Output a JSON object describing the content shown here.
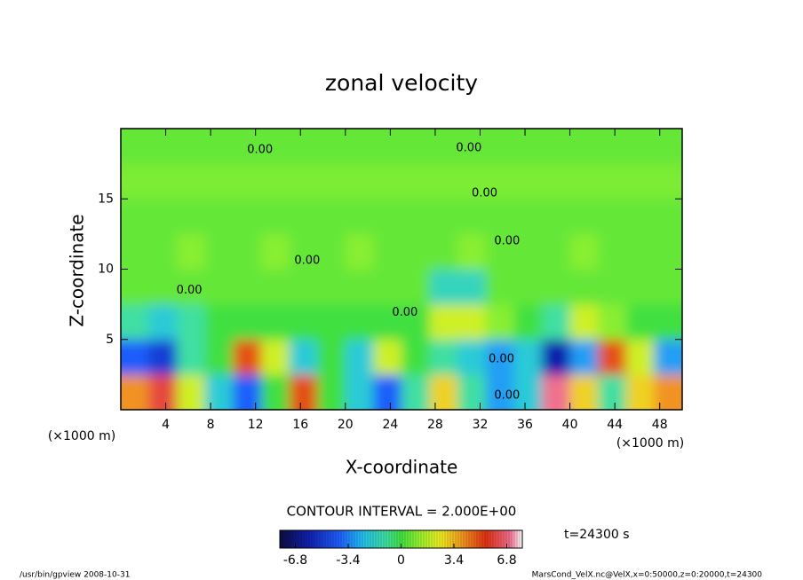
{
  "chart_data": {
    "type": "heatmap",
    "title": "zonal velocity",
    "x_label": "X-coordinate",
    "y_label": "Z-coordinate",
    "x_unit_label": "(×1000 m)",
    "xlim": [
      0,
      50
    ],
    "xticks": [
      4,
      8,
      12,
      16,
      20,
      24,
      28,
      32,
      36,
      40,
      44,
      48
    ],
    "ylim": [
      0,
      20
    ],
    "yticks": [
      5,
      10,
      15
    ],
    "x": [
      1.25,
      3.75,
      6.25,
      8.75,
      11.25,
      13.75,
      16.25,
      18.75,
      21.25,
      23.75,
      26.25,
      28.75,
      31.25,
      33.75,
      36.25,
      38.75,
      41.25,
      43.75,
      46.25,
      48.75
    ],
    "y": [
      1.25,
      3.75,
      6.25,
      8.75,
      11.25,
      13.75,
      16.25,
      18.75
    ],
    "z": [
      [
        4,
        6,
        2,
        -2,
        -4,
        0,
        5,
        0,
        -2,
        -4,
        -1,
        3,
        -1,
        -3,
        -2,
        7,
        3,
        -1,
        3,
        4
      ],
      [
        -4,
        -5,
        -1,
        0,
        5,
        2,
        -2,
        0,
        -2,
        2,
        0,
        -1,
        -2,
        -3,
        -2,
        -6,
        -3,
        5,
        2,
        -3
      ],
      [
        -1,
        -2,
        -1,
        0,
        0,
        0,
        0,
        0,
        0,
        0,
        0,
        2,
        2,
        1,
        0,
        -1,
        2,
        1,
        0,
        0
      ],
      [
        0.5,
        0.5,
        0.5,
        0.5,
        0.5,
        0.5,
        0.5,
        0.5,
        0.5,
        0.5,
        0.5,
        -1.5,
        -1.5,
        0.5,
        0.5,
        0.5,
        0.5,
        0.5,
        0.5,
        0.5
      ],
      [
        0.5,
        0.5,
        1,
        0.5,
        0.5,
        1,
        0.5,
        0.5,
        1,
        0.5,
        0.5,
        0.5,
        1,
        0.5,
        0.5,
        0.5,
        1,
        0.5,
        0.5,
        0.5
      ],
      [
        0.5,
        0.5,
        0.5,
        0.5,
        0.5,
        0.5,
        0.5,
        0.5,
        0.5,
        0.5,
        0.5,
        0.5,
        0.5,
        0.5,
        0.5,
        0.5,
        0.5,
        0.5,
        0.5,
        0.5
      ],
      [
        0.8,
        0.8,
        0.8,
        0.8,
        0.8,
        0.8,
        0.8,
        0.8,
        0.8,
        0.8,
        0.8,
        0.8,
        0.8,
        0.8,
        0.8,
        0.8,
        0.8,
        0.8,
        0.8,
        0.8
      ],
      [
        0.5,
        0.5,
        0.5,
        0.5,
        0.5,
        0.5,
        0.5,
        0.5,
        0.5,
        0.5,
        0.5,
        0.5,
        0.5,
        0.5,
        0.5,
        0.5,
        0.5,
        0.5,
        0.5,
        0.5
      ]
    ],
    "contour_labels": [
      {
        "text": "0.00",
        "x": 12.4,
        "y": 18.5
      },
      {
        "text": "0.00",
        "x": 31.0,
        "y": 18.6
      },
      {
        "text": "0.00",
        "x": 32.4,
        "y": 15.4
      },
      {
        "text": "0.00",
        "x": 34.4,
        "y": 12.0
      },
      {
        "text": "0.00",
        "x": 16.6,
        "y": 10.6
      },
      {
        "text": "0.00",
        "x": 6.1,
        "y": 8.5
      },
      {
        "text": "0.00",
        "x": 25.3,
        "y": 6.9
      },
      {
        "text": "0.00",
        "x": 33.9,
        "y": 3.6
      },
      {
        "text": "0.00",
        "x": 34.4,
        "y": 1.0
      }
    ],
    "contour_interval": "CONTOUR INTERVAL = 2.000E+00",
    "time_label": "t=24300 s",
    "clim": [
      -7.8,
      7.8
    ],
    "cticks": [
      -6.8,
      -3.4,
      0,
      3.4,
      6.8
    ],
    "footer_left": "/usr/bin/gpview   2008-10-31",
    "footer_right": "MarsCond_VelX.nc@VelX,x=0:50000,z=0:20000,t=24300"
  }
}
